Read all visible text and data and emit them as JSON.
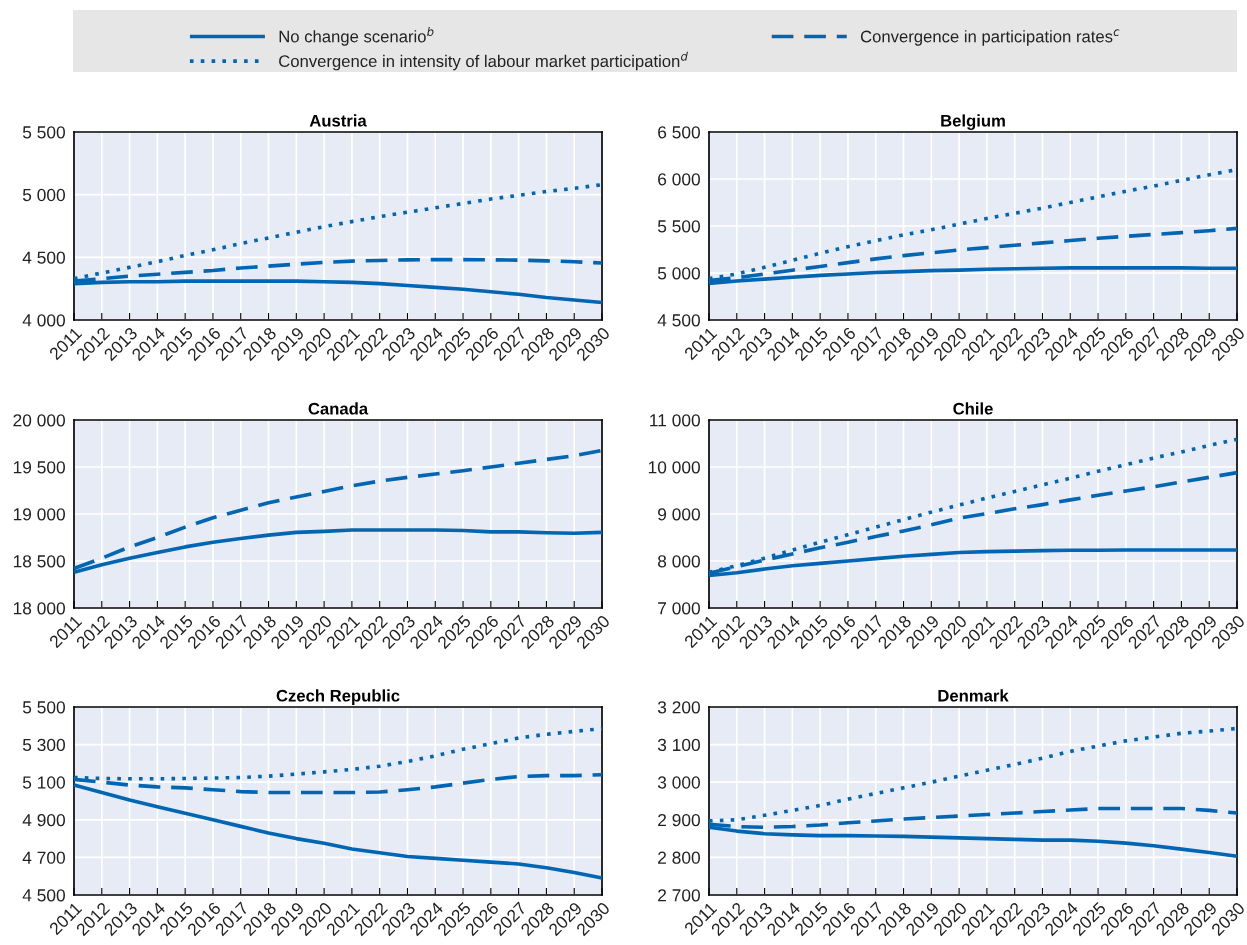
{
  "chart_data": [
    {
      "type": "line",
      "title": "Austria",
      "legend": "top",
      "grid": true,
      "categories": [
        "2011",
        "2012",
        "2013",
        "2014",
        "2015",
        "2016",
        "2017",
        "2018",
        "2019",
        "2020",
        "2021",
        "2022",
        "2023",
        "2024",
        "2025",
        "2026",
        "2027",
        "2028",
        "2029",
        "2030"
      ],
      "ylim": [
        4000,
        5500
      ],
      "yticks": [
        {
          "value": 4000,
          "label": "4 000"
        },
        {
          "value": 4500,
          "label": "4 500"
        },
        {
          "value": 5000,
          "label": "5 000"
        },
        {
          "value": 5500,
          "label": "5 500"
        }
      ],
      "series": [
        {
          "name": "No change scenario$^{b}$",
          "color": "#0066b3",
          "line_style": "solid",
          "values": [
            4290,
            4300,
            4305,
            4305,
            4310,
            4310,
            4310,
            4310,
            4310,
            4305,
            4300,
            4290,
            4275,
            4260,
            4245,
            4225,
            4205,
            4180,
            4160,
            4140
          ]
        },
        {
          "name": "Convergence in participation rates$^{c}$",
          "color": "#0066b3",
          "line_style": "dashed",
          "values": [
            4310,
            4330,
            4350,
            4365,
            4380,
            4395,
            4415,
            4430,
            4445,
            4460,
            4470,
            4475,
            4480,
            4482,
            4482,
            4480,
            4478,
            4472,
            4465,
            4455
          ]
        },
        {
          "name": "Convergence in intensity of labour market participation$^{d}$",
          "color": "#0066b3",
          "line_style": "dotted",
          "values": [
            4330,
            4375,
            4420,
            4465,
            4515,
            4560,
            4610,
            4655,
            4700,
            4745,
            4785,
            4825,
            4860,
            4895,
            4930,
            4965,
            4995,
            5025,
            5050,
            5080
          ]
        }
      ]
    },
    {
      "type": "line",
      "title": "Belgium",
      "grid": true,
      "categories": [
        "2011",
        "2012",
        "2013",
        "2014",
        "2015",
        "2016",
        "2017",
        "2018",
        "2019",
        "2020",
        "2021",
        "2022",
        "2023",
        "2024",
        "2025",
        "2026",
        "2027",
        "2028",
        "2029",
        "2030"
      ],
      "ylim": [
        4500,
        6500
      ],
      "yticks": [
        {
          "value": 4500,
          "label": "4 500"
        },
        {
          "value": 5000,
          "label": "5 000"
        },
        {
          "value": 5500,
          "label": "5 500"
        },
        {
          "value": 6000,
          "label": "6 000"
        },
        {
          "value": 6500,
          "label": "6 500"
        }
      ],
      "series": [
        {
          "name": "No change scenario$^{b}$",
          "color": "#0066b3",
          "line_style": "solid",
          "values": [
            4890,
            4915,
            4935,
            4955,
            4975,
            4990,
            5005,
            5015,
            5025,
            5030,
            5040,
            5045,
            5050,
            5055,
            5055,
            5055,
            5055,
            5055,
            5050,
            5050
          ]
        },
        {
          "name": "Convergence in participation rates$^{c}$",
          "color": "#0066b3",
          "line_style": "dashed",
          "values": [
            4920,
            4950,
            4990,
            5030,
            5070,
            5110,
            5150,
            5185,
            5215,
            5245,
            5270,
            5295,
            5320,
            5345,
            5370,
            5390,
            5410,
            5430,
            5450,
            5475
          ]
        },
        {
          "name": "Convergence in intensity of labour market participation$^{d}$",
          "color": "#0066b3",
          "line_style": "dotted",
          "values": [
            4940,
            4990,
            5060,
            5135,
            5210,
            5280,
            5345,
            5405,
            5460,
            5520,
            5580,
            5635,
            5690,
            5750,
            5810,
            5870,
            5925,
            5985,
            6045,
            6100
          ]
        }
      ]
    },
    {
      "type": "line",
      "title": "Canada",
      "grid": true,
      "categories": [
        "2011",
        "2012",
        "2013",
        "2014",
        "2015",
        "2016",
        "2017",
        "2018",
        "2019",
        "2020",
        "2021",
        "2022",
        "2023",
        "2024",
        "2025",
        "2026",
        "2027",
        "2028",
        "2029",
        "2030"
      ],
      "ylim": [
        18000,
        20000
      ],
      "yticks": [
        {
          "value": 18000,
          "label": "18 000"
        },
        {
          "value": 18500,
          "label": "18 500"
        },
        {
          "value": 19000,
          "label": "19 000"
        },
        {
          "value": 19500,
          "label": "19 500"
        },
        {
          "value": 20000,
          "label": "20 000"
        }
      ],
      "series": [
        {
          "name": "No change scenario$^{b}$",
          "color": "#0066b3",
          "line_style": "solid",
          "values": [
            18380,
            18460,
            18530,
            18590,
            18650,
            18700,
            18740,
            18775,
            18805,
            18815,
            18830,
            18830,
            18830,
            18830,
            18825,
            18810,
            18810,
            18800,
            18795,
            18805
          ]
        },
        {
          "name": "Convergence in participation rates$^{c}$",
          "color": "#0066b3",
          "line_style": "dashed",
          "values": [
            18420,
            18530,
            18650,
            18750,
            18860,
            18960,
            19040,
            19120,
            19180,
            19240,
            19300,
            19350,
            19390,
            19425,
            19460,
            19500,
            19540,
            19580,
            19620,
            19675
          ]
        }
      ]
    },
    {
      "type": "line",
      "title": "Chile",
      "grid": true,
      "categories": [
        "2011",
        "2012",
        "2013",
        "2014",
        "2015",
        "2016",
        "2017",
        "2018",
        "2019",
        "2020",
        "2021",
        "2022",
        "2023",
        "2024",
        "2025",
        "2026",
        "2027",
        "2028",
        "2029",
        "2030"
      ],
      "ylim": [
        7000,
        11000
      ],
      "yticks": [
        {
          "value": 7000,
          "label": "7 000"
        },
        {
          "value": 8000,
          "label": "8 000"
        },
        {
          "value": 9000,
          "label": "9 000"
        },
        {
          "value": 10000,
          "label": "10 000"
        },
        {
          "value": 11000,
          "label": "11 000"
        }
      ],
      "series": [
        {
          "name": "No change scenario$^{b}$",
          "color": "#0066b3",
          "line_style": "solid",
          "values": [
            7690,
            7750,
            7830,
            7900,
            7950,
            8000,
            8050,
            8100,
            8140,
            8180,
            8200,
            8210,
            8220,
            8230,
            8230,
            8235,
            8235,
            8235,
            8235,
            8235
          ]
        },
        {
          "name": "Convergence in participation rates$^{c}$",
          "color": "#0066b3",
          "line_style": "dashed",
          "values": [
            7740,
            7880,
            8020,
            8150,
            8280,
            8400,
            8520,
            8640,
            8770,
            8910,
            9010,
            9110,
            9200,
            9300,
            9400,
            9490,
            9580,
            9680,
            9780,
            9880
          ]
        },
        {
          "name": "Convergence in intensity of labour market participation$^{d}$",
          "color": "#0066b3",
          "line_style": "dotted",
          "values": [
            7760,
            7900,
            8060,
            8230,
            8400,
            8560,
            8720,
            8880,
            9040,
            9190,
            9340,
            9480,
            9620,
            9760,
            9910,
            10050,
            10190,
            10320,
            10460,
            10590
          ]
        }
      ]
    },
    {
      "type": "line",
      "title": "Czech Republic",
      "grid": true,
      "categories": [
        "2011",
        "2012",
        "2013",
        "2014",
        "2015",
        "2016",
        "2017",
        "2018",
        "2019",
        "2020",
        "2021",
        "2022",
        "2023",
        "2024",
        "2025",
        "2026",
        "2027",
        "2028",
        "2029",
        "2030"
      ],
      "ylim": [
        4500,
        5500
      ],
      "yticks": [
        {
          "value": 4500,
          "label": "4 500"
        },
        {
          "value": 4700,
          "label": "4 700"
        },
        {
          "value": 4900,
          "label": "4 900"
        },
        {
          "value": 5100,
          "label": "5 100"
        },
        {
          "value": 5300,
          "label": "5 300"
        },
        {
          "value": 5500,
          "label": "5 500"
        }
      ],
      "series": [
        {
          "name": "No change scenario$^{b}$",
          "color": "#0066b3",
          "line_style": "solid",
          "values": [
            5085,
            5045,
            5005,
            4970,
            4935,
            4900,
            4865,
            4830,
            4800,
            4775,
            4745,
            4725,
            4705,
            4695,
            4685,
            4675,
            4665,
            4645,
            4620,
            4590
          ]
        },
        {
          "name": "Convergence in participation rates$^{c}$",
          "color": "#0066b3",
          "line_style": "dashed",
          "values": [
            5115,
            5100,
            5085,
            5075,
            5070,
            5060,
            5050,
            5045,
            5045,
            5045,
            5045,
            5048,
            5060,
            5075,
            5095,
            5115,
            5130,
            5135,
            5135,
            5140
          ]
        },
        {
          "name": "Convergence in intensity of labour market participation$^{d}$",
          "color": "#0066b3",
          "line_style": "dotted",
          "values": [
            5125,
            5120,
            5118,
            5118,
            5120,
            5122,
            5125,
            5132,
            5143,
            5155,
            5168,
            5185,
            5210,
            5240,
            5275,
            5305,
            5335,
            5355,
            5370,
            5385
          ]
        }
      ]
    },
    {
      "type": "line",
      "title": "Denmark",
      "grid": true,
      "categories": [
        "2011",
        "2012",
        "2013",
        "2014",
        "2015",
        "2016",
        "2017",
        "2018",
        "2019",
        "2020",
        "2021",
        "2022",
        "2023",
        "2024",
        "2025",
        "2026",
        "2027",
        "2028",
        "2029",
        "2030"
      ],
      "ylim": [
        2700,
        3200
      ],
      "yticks": [
        {
          "value": 2700,
          "label": "2 700"
        },
        {
          "value": 2800,
          "label": "2 800"
        },
        {
          "value": 2900,
          "label": "2 900"
        },
        {
          "value": 3000,
          "label": "3 000"
        },
        {
          "value": 3100,
          "label": "3 100"
        },
        {
          "value": 3200,
          "label": "3 200"
        }
      ],
      "series": [
        {
          "name": "No change scenario$^{b}$",
          "color": "#0066b3",
          "line_style": "solid",
          "values": [
            2880,
            2870,
            2863,
            2860,
            2858,
            2858,
            2857,
            2856,
            2854,
            2852,
            2850,
            2848,
            2846,
            2846,
            2843,
            2838,
            2831,
            2822,
            2813,
            2803
          ]
        },
        {
          "name": "Convergence in participation rates$^{c}$",
          "color": "#0066b3",
          "line_style": "dashed",
          "values": [
            2888,
            2882,
            2880,
            2882,
            2886,
            2892,
            2897,
            2902,
            2906,
            2910,
            2914,
            2918,
            2922,
            2926,
            2930,
            2930,
            2930,
            2930,
            2925,
            2918
          ]
        },
        {
          "name": "Convergence in intensity of labour market participation$^{d}$",
          "color": "#0066b3",
          "line_style": "dotted",
          "values": [
            2897,
            2900,
            2912,
            2925,
            2938,
            2955,
            2970,
            2985,
            3000,
            3016,
            3032,
            3047,
            3064,
            3082,
            3096,
            3110,
            3120,
            3130,
            3136,
            3143
          ]
        }
      ]
    }
  ]
}
